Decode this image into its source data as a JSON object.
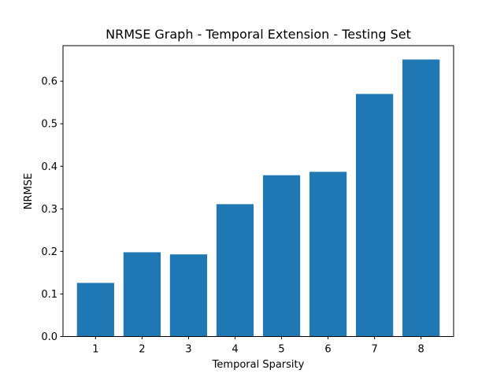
{
  "chart_data": {
    "type": "bar",
    "title": "NRMSE Graph - Temporal Extension - Testing Set",
    "xlabel": "Temporal Sparsity",
    "ylabel": "NRMSE",
    "categories": [
      "1",
      "2",
      "3",
      "4",
      "5",
      "6",
      "7",
      "8"
    ],
    "values": [
      0.126,
      0.198,
      0.193,
      0.311,
      0.379,
      0.387,
      0.57,
      0.651
    ],
    "ylim": [
      0,
      0.6835
    ],
    "yticks": [
      0.0,
      0.1,
      0.2,
      0.3,
      0.4,
      0.5,
      0.6
    ],
    "ytick_labels": [
      "0.0",
      "0.1",
      "0.2",
      "0.3",
      "0.4",
      "0.5",
      "0.6"
    ],
    "bar_color": "#1f77b4",
    "grid": false,
    "legend": "none"
  }
}
